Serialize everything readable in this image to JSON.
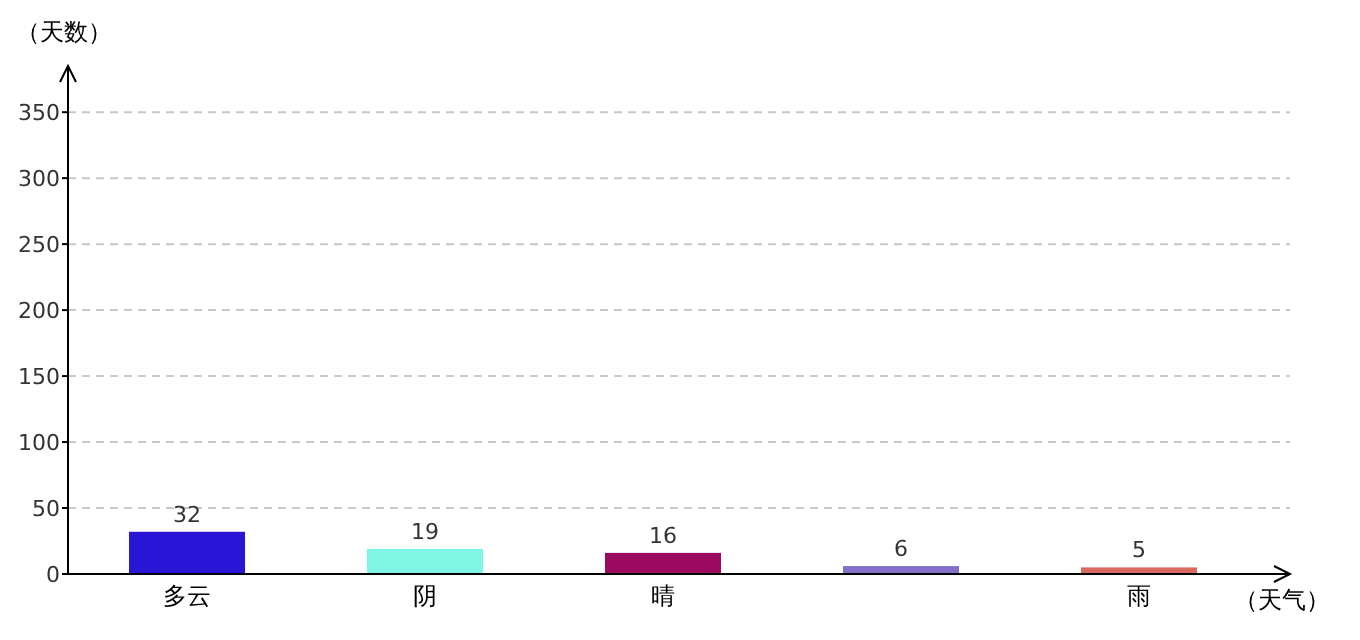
{
  "chart_data": {
    "type": "bar",
    "xlabel": "（天气）",
    "ylabel": "（天数）",
    "categories": [
      "多云",
      "阴",
      "晴",
      null,
      "雨"
    ],
    "values": [
      32,
      19,
      16,
      6,
      5
    ],
    "colors": [
      "#2a14d6",
      "#7ff5e6",
      "#9a0a5e",
      "#8470c8",
      "#d8695d"
    ],
    "ylim": [
      0,
      385
    ],
    "yticks": [
      0,
      50,
      100,
      150,
      200,
      250,
      300,
      350
    ],
    "grid": "y",
    "data_labels": true
  }
}
